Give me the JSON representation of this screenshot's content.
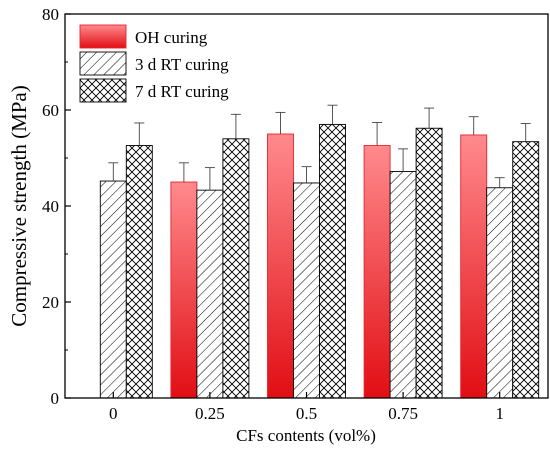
{
  "chart_data": {
    "type": "bar",
    "xlabel": "CFs contents (vol%)",
    "ylabel": "Compressive strength (MPa)",
    "ylim": [
      0,
      80
    ],
    "yticks": [
      0,
      20,
      40,
      60,
      80
    ],
    "categories": [
      "0",
      "0.25",
      "0.5",
      "0.75",
      "1"
    ],
    "legend_position": "top-left",
    "series": [
      {
        "name": "OH curing",
        "style": "red-gradient-fill",
        "color": "#e8242e",
        "values": [
          null,
          45.0,
          55.0,
          52.6,
          54.8
        ],
        "errors": [
          null,
          4.0,
          4.5,
          4.8,
          3.8
        ]
      },
      {
        "name": "3 d RT curing",
        "style": "diagonal-hatch",
        "color": "#000000",
        "values": [
          45.2,
          43.3,
          44.8,
          47.2,
          43.8
        ],
        "errors": [
          3.8,
          4.7,
          3.4,
          4.7,
          2.1
        ]
      },
      {
        "name": "7 d RT curing",
        "style": "cross-hatch",
        "color": "#000000",
        "values": [
          52.6,
          54.0,
          57.0,
          56.2,
          53.4
        ],
        "errors": [
          4.7,
          5.1,
          4.0,
          4.2,
          3.8
        ]
      }
    ]
  }
}
